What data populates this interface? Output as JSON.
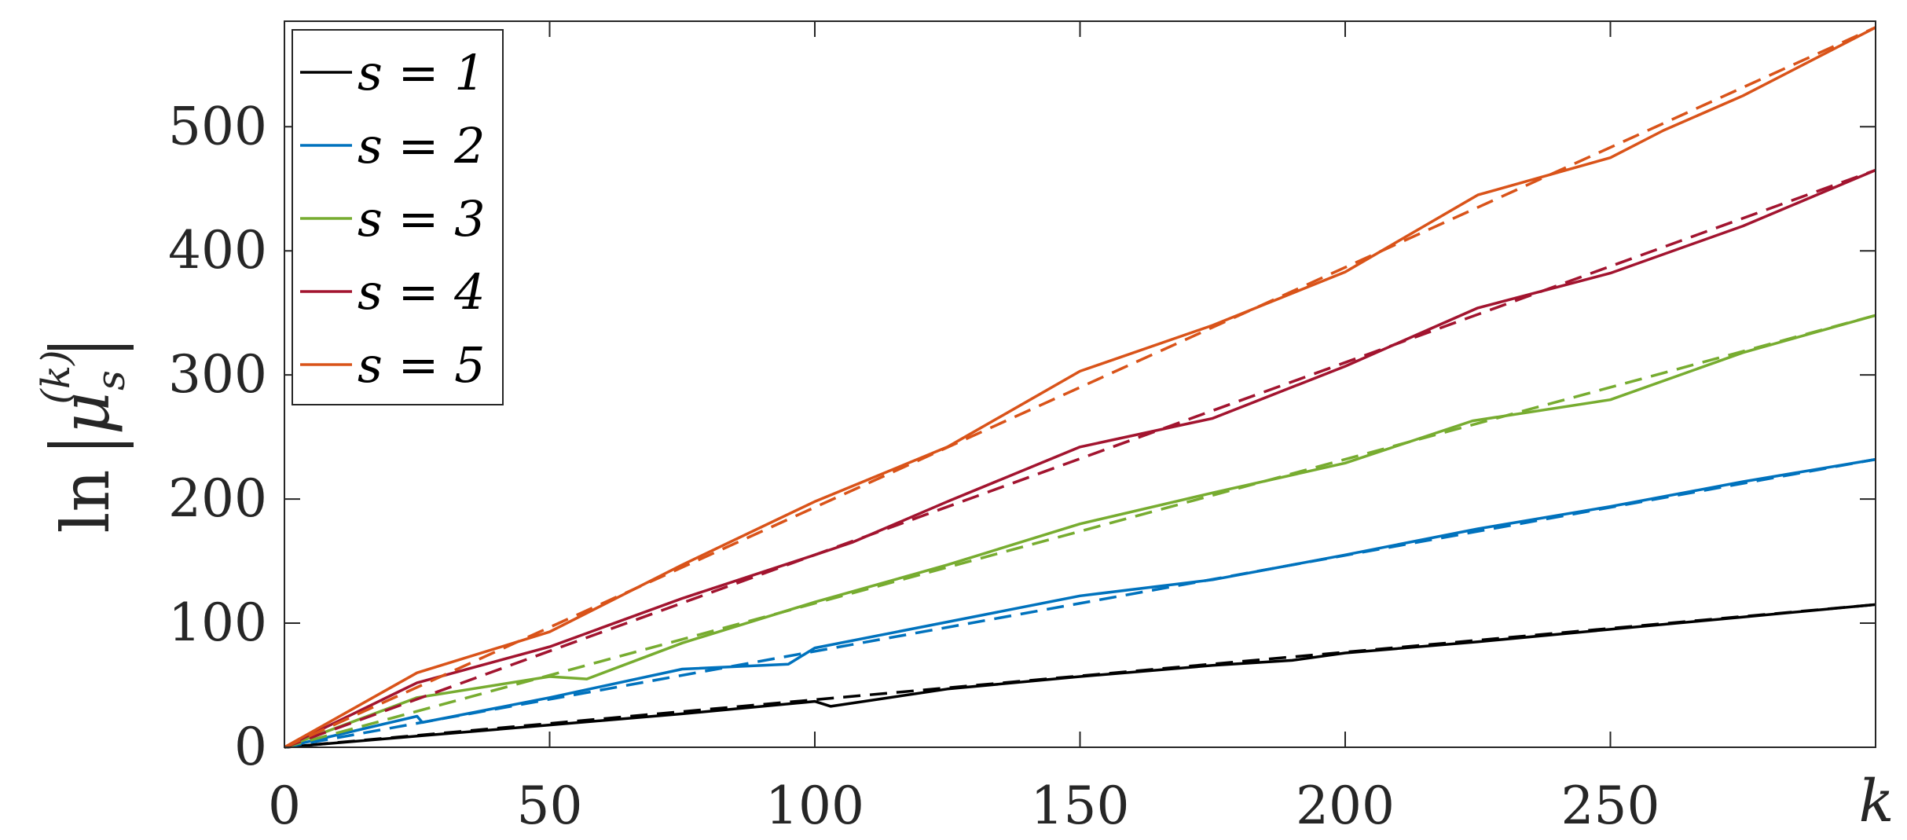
{
  "chart_data": {
    "type": "line",
    "xlabel": "k",
    "ylabel": "ln|μ_s^(k)|",
    "xlim": [
      0,
      300
    ],
    "ylim": [
      0,
      585
    ],
    "xticks": [
      0,
      50,
      100,
      150,
      200,
      250
    ],
    "yticks": [
      0,
      100,
      200,
      300,
      400,
      500
    ],
    "grid": false,
    "legend_position": "top-left",
    "series": [
      {
        "name": "s = 1",
        "color": "#000000",
        "style": "solid",
        "x": [
          0,
          25,
          50,
          75,
          100,
          103,
          125,
          150,
          175,
          190,
          200,
          225,
          250,
          275,
          300
        ],
        "y": [
          0,
          9,
          18,
          27,
          37,
          33,
          47,
          57,
          66,
          70,
          76,
          85,
          95,
          105,
          115
        ]
      },
      {
        "name": "s = 2",
        "color": "#0072BD",
        "style": "solid",
        "x": [
          0,
          25,
          26,
          50,
          75,
          95,
          100,
          125,
          150,
          175,
          200,
          225,
          250,
          275,
          300
        ],
        "y": [
          0,
          25,
          20,
          40,
          63,
          67,
          80,
          101,
          122,
          135,
          155,
          176,
          194,
          214,
          232
        ]
      },
      {
        "name": "s = 3",
        "color": "#77AC30",
        "style": "solid",
        "x": [
          0,
          25,
          50,
          57,
          75,
          100,
          125,
          150,
          175,
          200,
          224,
          250,
          275,
          300
        ],
        "y": [
          0,
          40,
          57,
          55,
          84,
          117,
          147,
          180,
          205,
          229,
          263,
          280,
          318,
          348
        ]
      },
      {
        "name": "s = 4",
        "color": "#A2142F",
        "style": "solid",
        "x": [
          0,
          25,
          50,
          75,
          100,
          107,
          125,
          150,
          175,
          200,
          225,
          250,
          275,
          300
        ],
        "y": [
          0,
          52,
          81,
          120,
          155,
          165,
          198,
          242,
          265,
          307,
          354,
          382,
          420,
          465
        ]
      },
      {
        "name": "s = 5",
        "color": "#D95319",
        "style": "solid",
        "x": [
          0,
          25,
          50,
          75,
          100,
          125,
          150,
          175,
          200,
          225,
          250,
          260,
          275,
          300
        ],
        "y": [
          0,
          60,
          93,
          147,
          198,
          242,
          303,
          340,
          383,
          445,
          475,
          497,
          525,
          580
        ]
      },
      {
        "name": "",
        "color": "#000000",
        "style": "dashed",
        "x": [
          0,
          300
        ],
        "y": [
          0,
          115
        ]
      },
      {
        "name": "",
        "color": "#0072BD",
        "style": "dashed",
        "x": [
          0,
          300
        ],
        "y": [
          0,
          232
        ]
      },
      {
        "name": "",
        "color": "#77AC30",
        "style": "dashed",
        "x": [
          0,
          300
        ],
        "y": [
          0,
          348
        ]
      },
      {
        "name": "",
        "color": "#A2142F",
        "style": "dashed",
        "x": [
          0,
          300
        ],
        "y": [
          0,
          465
        ]
      },
      {
        "name": "",
        "color": "#D95319",
        "style": "dashed",
        "x": [
          0,
          300
        ],
        "y": [
          0,
          580
        ]
      }
    ]
  }
}
